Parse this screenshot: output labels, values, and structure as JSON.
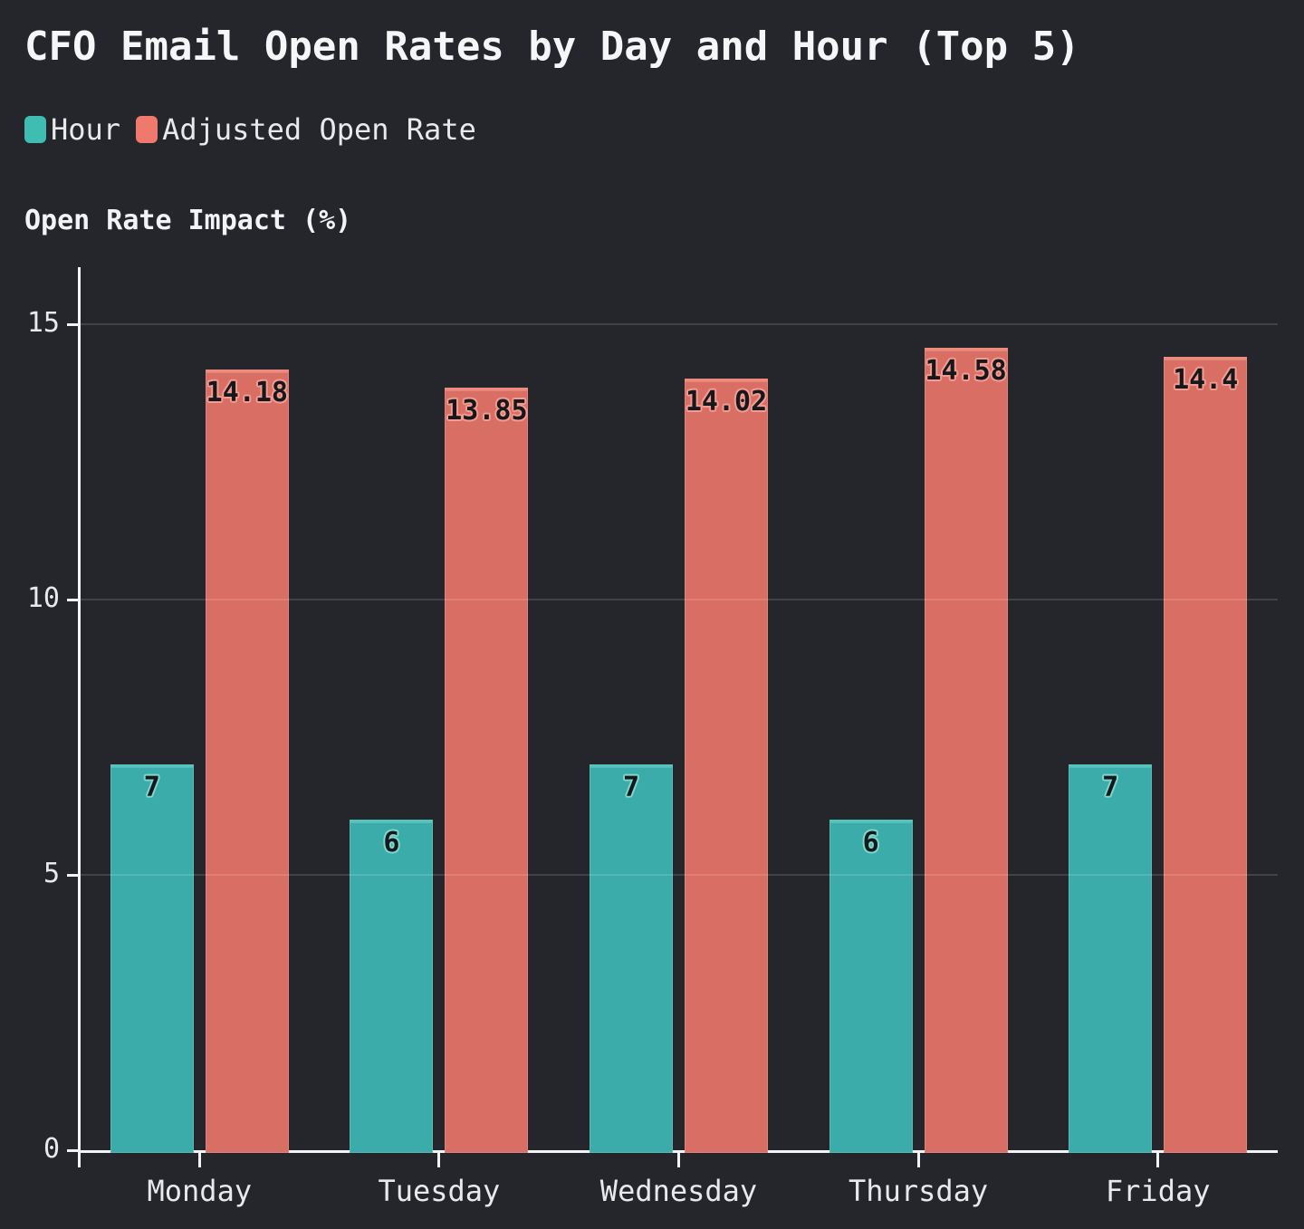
{
  "title": "CFO Email Open Rates by Day and Hour (Top 5)",
  "colors": {
    "background": "#24262c",
    "text": "#e8e9ea",
    "axis": "#f2f3f4",
    "grid_overlay": "rgba(255,255,255,0.13)",
    "bar_label_text": "#15181d"
  },
  "chart_data": {
    "type": "bar",
    "title": "CFO Email Open Rates by Day and Hour (Top 5)",
    "ylabel": "Open Rate Impact (%)",
    "xlabel": "",
    "categories": [
      "Monday",
      "Tuesday",
      "Wednesday",
      "Thursday",
      "Friday"
    ],
    "series": [
      {
        "name": "Hour",
        "values": [
          7,
          6,
          7,
          6,
          7
        ],
        "labels": [
          "7",
          "6",
          "7",
          "6",
          "7"
        ],
        "color": "#3bacaa",
        "edge_color": "#55c4ba",
        "halo_color": "#7fd6ca",
        "legend_color": "#3fbdb2"
      },
      {
        "name": "Adjusted Open Rate",
        "values": [
          14.18,
          13.85,
          14.02,
          14.58,
          14.4
        ],
        "labels": [
          "14.18",
          "13.85",
          "14.02",
          "14.58",
          "14.4"
        ],
        "color": "#d96e64",
        "edge_color": "#f08a7d",
        "halo_color": "#f49c90",
        "legend_color": "#f0796d"
      }
    ],
    "ylim": [
      0,
      16
    ],
    "yticks": [
      0,
      5,
      10,
      15
    ],
    "grid": true,
    "legend_position": "top-left"
  }
}
